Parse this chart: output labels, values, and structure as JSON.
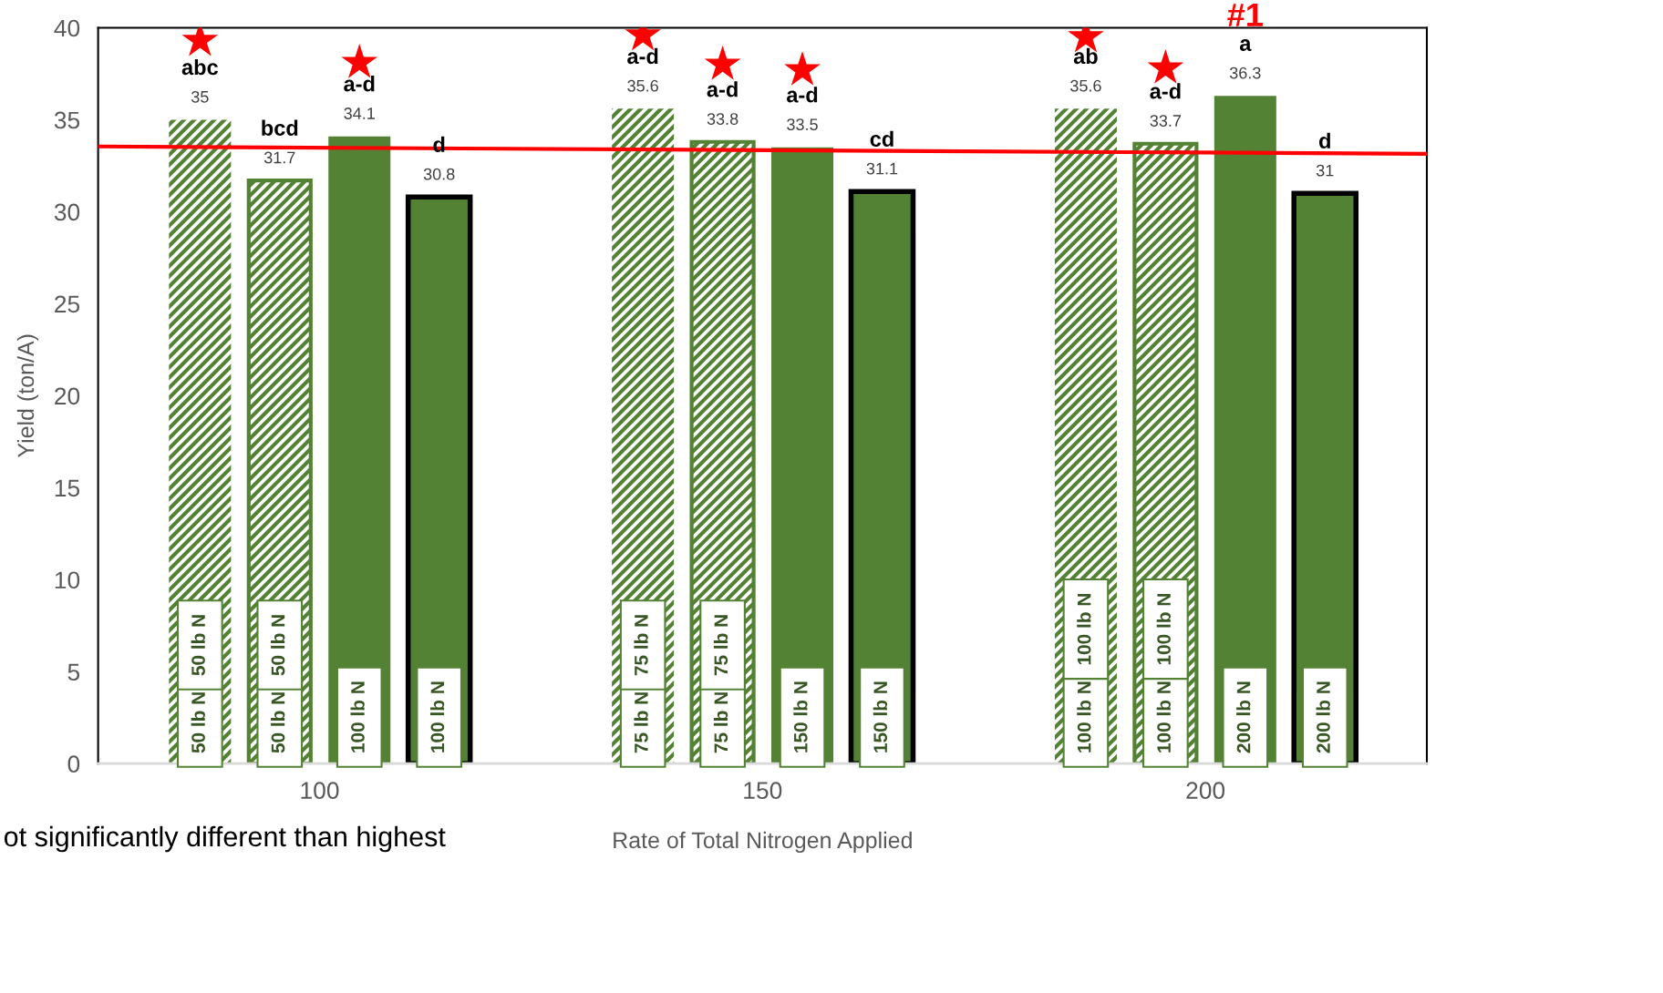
{
  "chart_data": {
    "type": "bar",
    "xlabel": "Rate of Total Nitrogen Applied",
    "ylabel": "Yield (ton/A)",
    "xlim": [
      75,
      225
    ],
    "xticks": [
      100,
      150,
      200
    ],
    "ylim": [
      0,
      40
    ],
    "yticks": [
      0,
      5,
      10,
      15,
      20,
      25,
      30,
      35,
      40
    ],
    "grid": false,
    "legend": false,
    "series": [
      {
        "color": "#548235",
        "x": [
          86.5,
          136.5,
          186.5
        ],
        "values": [
          35,
          35.6,
          35.6
        ],
        "value_labels": [
          "35",
          "35.6",
          "35.6"
        ]
      },
      {
        "color": "#548235",
        "x": [
          95.5,
          145.5,
          195.5
        ],
        "values": [
          31.7,
          33.8,
          33.7
        ],
        "value_labels": [
          "31.7",
          "33.8",
          "33.7"
        ]
      },
      {
        "color": "#548235",
        "x": [
          104.5,
          154.5,
          204.5
        ],
        "values": [
          34.1,
          33.5,
          36.3
        ],
        "value_labels": [
          "34.1",
          "33.5",
          "36.3"
        ]
      },
      {
        "color": "#548235",
        "x": [
          113.5,
          163.5,
          213.5
        ],
        "values": [
          30.8,
          31.1,
          31
        ],
        "value_labels": [
          "30.8",
          "31.1",
          "31"
        ]
      },
      {
        "type": "scatter",
        "marker": "star",
        "color": "#ff0000",
        "x": [
          86.5,
          104.5,
          136.5,
          145.5,
          154.5,
          186.5,
          195.5
        ],
        "values": [
          39.3,
          38.1,
          39.6,
          38.0,
          37.7,
          39.5,
          37.8
        ]
      },
      {
        "type": "line",
        "color": "#ff0000",
        "x": [
          75,
          225
        ],
        "values": [
          33.55,
          33.15
        ]
      }
    ],
    "annotations": [
      "abc",
      "bcd",
      "a-d",
      "d",
      "a-d",
      "a-d",
      "a-d",
      "cd",
      "ab",
      "a-d",
      "a",
      "d",
      "#1",
      "50 lb N",
      "50 lb N",
      "50 lb N",
      "50 lb N",
      "100 lb N",
      "100 lb N",
      "75 lb N",
      "75 lb N",
      "75 lb N",
      "75 lb N",
      "150 lb N",
      "150 lb N",
      "100 lb N",
      "100 lb N",
      "100 lb N",
      "100 lb N",
      "200 lb N",
      "200 lb N",
      "ot significantly different than highest"
    ]
  }
}
